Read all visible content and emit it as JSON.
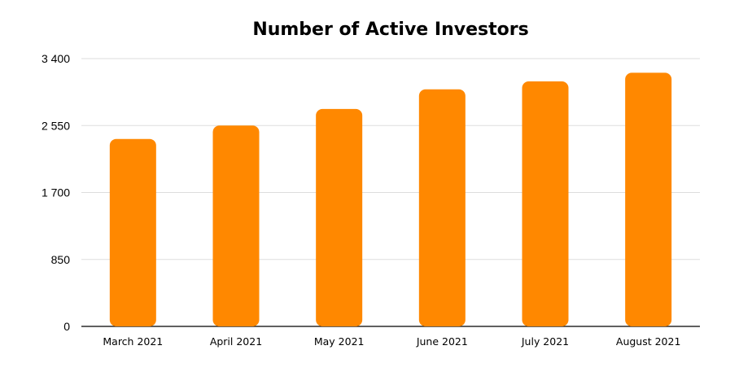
{
  "chart_data": {
    "type": "bar",
    "title": "Number of Active Investors",
    "categories": [
      "March 2021",
      "April 2021",
      "May 2021",
      "June 2021",
      "July 2021",
      "August 2021"
    ],
    "values": [
      2380,
      2550,
      2760,
      3010,
      3110,
      3220
    ],
    "y_ticks": [
      "0",
      "850",
      "1 700",
      "2 550",
      "3 400"
    ],
    "ylim": [
      0,
      3400
    ],
    "grid": true,
    "bar_color": "#FF8800",
    "grid_color": "#DDDDDD",
    "axis_color": "#000000"
  }
}
